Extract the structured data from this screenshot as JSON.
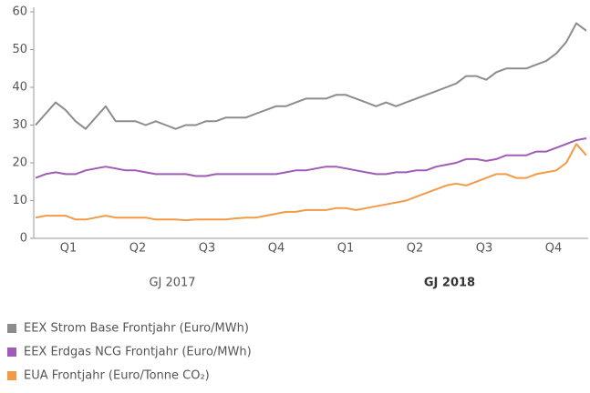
{
  "chart_data": {
    "type": "line",
    "quarters": [
      "Q1",
      "Q2",
      "Q3",
      "Q4",
      "Q1",
      "Q2",
      "Q3",
      "Q4"
    ],
    "groups": [
      {
        "label": "GJ 2017",
        "bold": false
      },
      {
        "label": "GJ 2018",
        "bold": true
      }
    ],
    "ylim": [
      0,
      60
    ],
    "yticks": [
      0,
      10,
      20,
      30,
      40,
      50,
      60
    ],
    "grid": false,
    "series": [
      {
        "name": "EEX Strom Base Frontjahr (Euro/MWh)",
        "color": "#8c8c8c",
        "values": [
          30,
          33,
          36,
          34,
          31,
          29,
          32,
          35,
          31,
          31,
          31,
          30,
          31,
          30,
          29,
          30,
          30,
          31,
          31,
          32,
          32,
          32,
          33,
          34,
          35,
          35,
          36,
          37,
          37,
          37,
          38,
          38,
          37,
          36,
          35,
          36,
          35,
          36,
          37,
          38,
          39,
          40,
          41,
          43,
          43,
          42,
          44,
          45,
          45,
          45,
          46,
          47,
          49,
          52,
          57,
          55
        ]
      },
      {
        "name": "EEX Erdgas NCG Frontjahr (Euro/MWh)",
        "color": "#9f5bb5",
        "values": [
          16,
          17,
          17.5,
          17,
          17,
          18,
          18.5,
          19,
          18.5,
          18,
          18,
          17.5,
          17,
          17,
          17,
          17,
          16.5,
          16.5,
          17,
          17,
          17,
          17,
          17,
          17,
          17,
          17.5,
          18,
          18,
          18.5,
          19,
          19,
          18.5,
          18,
          17.5,
          17,
          17,
          17.5,
          17.5,
          18,
          18,
          19,
          19.5,
          20,
          21,
          21,
          20.5,
          21,
          22,
          22,
          22,
          23,
          23,
          24,
          25,
          26,
          26.5
        ]
      },
      {
        "name": "EUA Frontjahr (Euro/Tonne CO₂)",
        "color": "#f39a47",
        "values": [
          5.5,
          6,
          6,
          6,
          5,
          5,
          5.5,
          6,
          5.5,
          5.5,
          5.5,
          5.5,
          5,
          5,
          5,
          4.8,
          5,
          5,
          5,
          5,
          5.3,
          5.5,
          5.5,
          6,
          6.5,
          7,
          7,
          7.5,
          7.5,
          7.5,
          8,
          8,
          7.5,
          8,
          8.5,
          9,
          9.5,
          10,
          11,
          12,
          13,
          14,
          14.5,
          14,
          15,
          16,
          17,
          17,
          16,
          16,
          17,
          17.5,
          18,
          20,
          25,
          22
        ]
      }
    ]
  }
}
